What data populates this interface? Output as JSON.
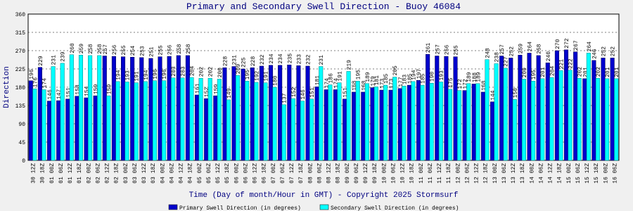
{
  "chart_data": {
    "type": "bar",
    "title": "Primary and Secondary Swell Direction - Buoy 46084",
    "x_label": "Time (Day of month/Hour in GMT) - Copyright 2025 Stormsurf",
    "y_label": "Direction",
    "categories": [
      "30 12Z",
      "30 18Z",
      "01 00Z",
      "01 06Z",
      "01 12Z",
      "01 18Z",
      "02 00Z",
      "02 06Z",
      "02 12Z",
      "02 18Z",
      "03 00Z",
      "03 06Z",
      "03 12Z",
      "03 18Z",
      "04 00Z",
      "04 06Z",
      "04 12Z",
      "04 18Z",
      "05 00Z",
      "05 06Z",
      "05 12Z",
      "05 18Z",
      "06 00Z",
      "06 06Z",
      "06 12Z",
      "06 18Z",
      "07 00Z",
      "07 06Z",
      "07 12Z",
      "07 18Z",
      "08 00Z",
      "08 06Z",
      "08 12Z",
      "08 18Z",
      "09 00Z",
      "09 06Z",
      "09 12Z",
      "09 18Z",
      "10 00Z",
      "10 06Z",
      "10 12Z",
      "10 18Z",
      "11 00Z",
      "11 06Z",
      "11 12Z",
      "11 18Z",
      "12 00Z",
      "12 06Z",
      "12 12Z",
      "12 18Z",
      "13 00Z",
      "13 06Z",
      "13 12Z",
      "13 18Z",
      "14 00Z",
      "14 06Z",
      "14 12Z",
      "14 18Z",
      "15 00Z",
      "15 06Z",
      "15 12Z",
      "15 18Z",
      "16 00Z",
      "16 06Z"
    ],
    "series": [
      {
        "name": "Primary Swell Direction (in degrees)",
        "color": "#0000cc",
        "values": [
          196,
          229,
          146,
          147,
          151,
          158,
          154,
          159,
          257,
          256,
          255,
          254,
          253,
          251,
          255,
          256,
          258,
          258,
          161,
          152,
          159,
          228,
          231,
          225,
          228,
          232,
          234,
          234,
          235,
          233,
          232,
          181,
          174,
          174,
          151,
          168,
          168,
          179,
          173,
          173,
          177,
          185,
          197,
          261,
          257,
          256,
          255,
          172,
          188,
          168,
          144,
          257,
          252,
          259,
          264,
          258,
          240,
          270,
          272,
          267,
          201,
          246,
          252,
          252
        ]
      },
      {
        "name": "Secondary Swell Direction (in degrees)",
        "color": "#00ffff",
        "values": [
          176,
          174,
          231,
          239,
          260,
          259,
          258,
          258,
          159,
          194,
          193,
          191,
          194,
          196,
          196,
          203,
          203,
          204,
          202,
          202,
          200,
          149,
          209,
          195,
          192,
          191,
          180,
          137,
          152,
          146,
          151,
          231,
          186,
          191,
          219,
          195,
          189,
          181,
          185,
          205,
          183,
          194,
          185,
          190,
          193,
          175,
          172,
          189,
          189,
          248,
          238,
          227,
          150,
          200,
          195,
          201,
          204,
          221,
          222,
          202,
          264,
          202,
          201,
          201
        ]
      }
    ],
    "ylim": [
      0,
      360
    ],
    "yticks": [
      0,
      45,
      90,
      135,
      180,
      225,
      270,
      315,
      360
    ],
    "grid": true
  }
}
